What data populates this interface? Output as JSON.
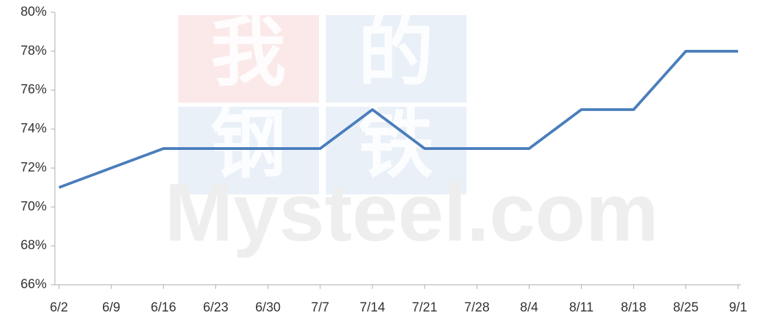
{
  "chart_data": {
    "type": "line",
    "categories": [
      "6/2",
      "6/9",
      "6/16",
      "6/23",
      "6/30",
      "7/7",
      "7/14",
      "7/21",
      "7/28",
      "8/4",
      "8/11",
      "8/18",
      "8/25",
      "9/1"
    ],
    "series": [
      {
        "color": "#4a7ebb",
        "values": [
          71,
          72,
          73,
          73,
          73,
          73,
          75,
          73,
          73,
          73,
          75,
          75,
          78,
          78
        ]
      }
    ],
    "ylim": [
      66,
      80
    ],
    "yticks": [
      {
        "value": 66,
        "label": "66%"
      },
      {
        "value": 68,
        "label": "68%"
      },
      {
        "value": 70,
        "label": "70%"
      },
      {
        "value": 72,
        "label": "72%"
      },
      {
        "value": 74,
        "label": "74%"
      },
      {
        "value": 76,
        "label": "76%"
      },
      {
        "value": 78,
        "label": "78%"
      },
      {
        "value": 80,
        "label": "80%"
      }
    ],
    "grid": false,
    "watermark_chars": [
      "我",
      "的",
      "钢",
      "铁"
    ],
    "watermark_text": "Mysteel.com"
  }
}
